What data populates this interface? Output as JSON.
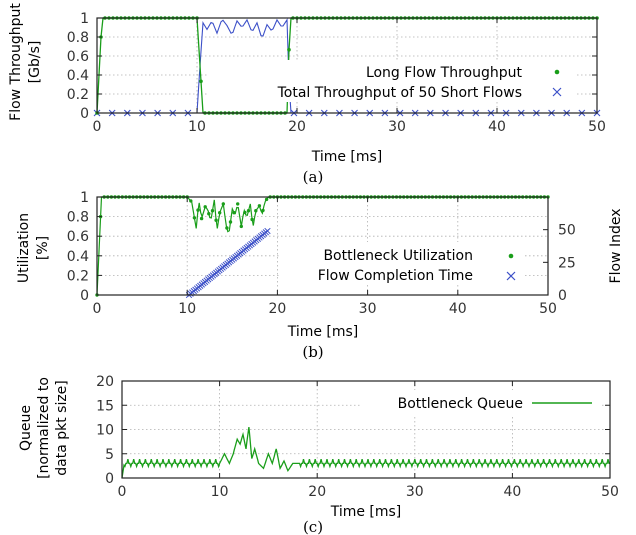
{
  "colors": {
    "green": "#1a9e1a",
    "blue": "#3c50c8",
    "grid": "#b0b0b0",
    "axis": "#222222"
  },
  "chart_data": [
    {
      "type": "line",
      "caption": "(a)",
      "xlabel": "Time [ms]",
      "ylabel": [
        "Flow Throughput",
        "[Gb/s]"
      ],
      "xlim": [
        0,
        50
      ],
      "ylim": [
        0,
        1
      ],
      "xticks": [
        "0",
        "10",
        "20",
        "30",
        "40",
        "50"
      ],
      "yticks": [
        "0",
        "0.2",
        "0.4",
        "0.6",
        "0.8",
        "1"
      ],
      "grid": true,
      "legend_position": "right",
      "series": [
        {
          "name": "Long Flow Throughput",
          "marker": "dot",
          "x": [
            0,
            0.5,
            1,
            10,
            10.3,
            10.6,
            19,
            19.3,
            50
          ],
          "y": [
            0,
            1,
            1,
            1,
            0.5,
            0,
            0,
            1,
            1
          ]
        },
        {
          "name": "Total Throughput of 50 Short Flows",
          "marker": "x",
          "x": [
            0,
            10,
            10.3,
            10.6,
            11,
            11.5,
            12,
            12.5,
            13,
            13.5,
            14,
            14.5,
            15,
            15.5,
            16,
            16.5,
            17,
            17.5,
            18,
            18.5,
            19,
            19.3,
            50
          ],
          "y": [
            0,
            0,
            0.5,
            0.95,
            0.88,
            0.97,
            0.84,
            0.99,
            0.92,
            0.82,
            0.97,
            0.9,
            0.98,
            0.85,
            0.95,
            0.78,
            0.93,
            0.86,
            0.98,
            0.9,
            0.98,
            0,
            0
          ]
        }
      ]
    },
    {
      "type": "line",
      "caption": "(b)",
      "xlabel": "Time [ms]",
      "ylabel": [
        "Utilization",
        "[%]"
      ],
      "y2label": "Flow Index",
      "xlim": [
        0,
        50
      ],
      "ylim": [
        0,
        1
      ],
      "y2lim": [
        0,
        75
      ],
      "xticks": [
        "0",
        "10",
        "20",
        "30",
        "40",
        "50"
      ],
      "yticks": [
        "0",
        "0.2",
        "0.4",
        "0.6",
        "0.8",
        "1"
      ],
      "y2ticks": [
        "0",
        "25",
        "50"
      ],
      "grid": true,
      "legend_position": "right",
      "series": [
        {
          "name": "Bottleneck Utilization",
          "marker": "dot",
          "x": [
            0,
            0.5,
            1,
            10,
            10.5,
            11,
            11.3,
            11.6,
            12,
            12.3,
            12.6,
            13,
            13.3,
            13.6,
            14,
            14.3,
            14.6,
            15,
            15.3,
            15.6,
            16,
            16.3,
            16.6,
            17,
            17.3,
            17.6,
            18,
            18.3,
            18.6,
            19,
            50
          ],
          "y": [
            0,
            1,
            1,
            1,
            0.95,
            0.68,
            0.96,
            0.78,
            0.9,
            0.87,
            0.75,
            0.97,
            0.66,
            0.84,
            0.93,
            0.72,
            0.61,
            0.88,
            0.82,
            0.93,
            0.7,
            0.87,
            0.79,
            0.93,
            0.69,
            0.86,
            0.91,
            0.82,
            0.95,
            1,
            1
          ]
        },
        {
          "name": "Flow Completion Time",
          "marker": "x",
          "axis": "right",
          "x_start": 10.2,
          "x_end": 18.9,
          "index_start": 0,
          "index_end": 49
        }
      ]
    },
    {
      "type": "line",
      "caption": "(c)",
      "xlabel": "Time [ms]",
      "ylabel": [
        "Queue",
        "[normalized to",
        "data pkt size]"
      ],
      "xlim": [
        0,
        50
      ],
      "ylim": [
        0,
        20
      ],
      "xticks": [
        "0",
        "10",
        "20",
        "30",
        "40",
        "50"
      ],
      "yticks": [
        "0",
        "5",
        "10",
        "15",
        "20"
      ],
      "grid": true,
      "legend_position": "top-right",
      "series": [
        {
          "name": "Bottleneck Queue",
          "baseline": 3,
          "x": [
            10,
            10.5,
            11,
            11.4,
            11.8,
            12.1,
            12.4,
            12.7,
            13,
            13.3,
            13.6,
            14,
            14.5,
            15,
            15.4,
            15.8,
            16.2,
            16.6,
            17,
            17.5,
            18
          ],
          "y": [
            3,
            5,
            3,
            5,
            8,
            7,
            9,
            6,
            10.5,
            4,
            6,
            3,
            2,
            5,
            3,
            6,
            2,
            3.5,
            1.5,
            3,
            3
          ]
        }
      ]
    }
  ]
}
